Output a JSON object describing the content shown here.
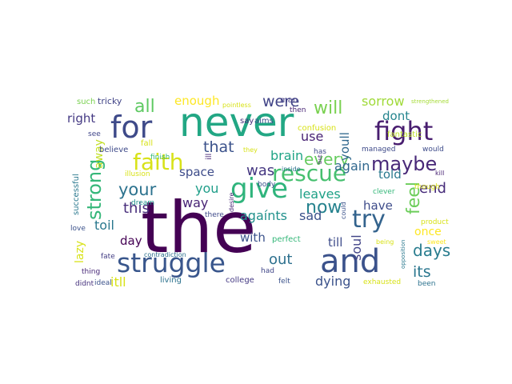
{
  "word_cloud": {
    "words": [
      {
        "text": "the",
        "color": "#440154"
      },
      {
        "text": "never",
        "color": "#22a784"
      },
      {
        "text": "and",
        "color": "#3b528b"
      },
      {
        "text": "struggle",
        "color": "#39568c"
      },
      {
        "text": "for",
        "color": "#3e4a89"
      },
      {
        "text": "fight",
        "color": "#481d6f"
      },
      {
        "text": "give",
        "color": "#2fb47c"
      },
      {
        "text": "try",
        "color": "#33638d"
      },
      {
        "text": "faith",
        "color": "#d8e219"
      },
      {
        "text": "rescue",
        "color": "#46c06f"
      },
      {
        "text": "strong",
        "color": "#35b779"
      },
      {
        "text": "maybe",
        "color": "#482878"
      },
      {
        "text": "now",
        "color": "#26828e"
      },
      {
        "text": "every",
        "color": "#65cb5e"
      },
      {
        "text": "feel",
        "color": "#6ccd5a"
      },
      {
        "text": "will",
        "color": "#7ad151"
      },
      {
        "text": "all",
        "color": "#5ec962"
      },
      {
        "text": "your",
        "color": "#2c728e"
      },
      {
        "text": "days",
        "color": "#287c8e"
      },
      {
        "text": "its",
        "color": "#2a768e"
      },
      {
        "text": "were",
        "color": "#414487"
      },
      {
        "text": "that",
        "color": "#3b528b"
      },
      {
        "text": "was",
        "color": "#453781"
      },
      {
        "text": "this",
        "color": "#472d7b"
      },
      {
        "text": "out",
        "color": "#2d708e"
      },
      {
        "text": "end",
        "color": "#472c7a"
      },
      {
        "text": "sorrow",
        "color": "#a0da39"
      },
      {
        "text": "enough",
        "color": "#fde725"
      },
      {
        "text": "right",
        "color": "#443983"
      },
      {
        "text": "youll",
        "color": "#31688e"
      },
      {
        "text": "dont",
        "color": "#25858e"
      },
      {
        "text": "use",
        "color": "#482374"
      },
      {
        "text": "brain",
        "color": "#20a486"
      },
      {
        "text": "again",
        "color": "#31688e"
      },
      {
        "text": "told",
        "color": "#2a788e"
      },
      {
        "text": "space",
        "color": "#3e4c8a"
      },
      {
        "text": "you",
        "color": "#1f9e89"
      },
      {
        "text": "way",
        "color": "#482475"
      },
      {
        "text": "leaves",
        "color": "#1fa187"
      },
      {
        "text": "agaínts",
        "color": "#21918c"
      },
      {
        "text": "have",
        "color": "#3e4c8a"
      },
      {
        "text": "sad",
        "color": "#3b528b"
      },
      {
        "text": "once",
        "color": "#fde725"
      },
      {
        "text": "toil",
        "color": "#2a788e"
      },
      {
        "text": "day",
        "color": "#440154"
      },
      {
        "text": "with",
        "color": "#3b528b"
      },
      {
        "text": "till",
        "color": "#3e4c8a"
      },
      {
        "text": "soul",
        "color": "#414487"
      },
      {
        "text": "dying",
        "color": "#3b528b"
      },
      {
        "text": "itll",
        "color": "#d8e219"
      },
      {
        "text": "away",
        "color": "#c2df23"
      },
      {
        "text": "lazy",
        "color": "#d8e219"
      },
      {
        "text": "such",
        "color": "#7ad151"
      },
      {
        "text": "tricky",
        "color": "#414487"
      },
      {
        "text": "man",
        "color": "#433e85"
      },
      {
        "text": "say",
        "color": "#472d7b"
      },
      {
        "text": "aims",
        "color": "#3b528b"
      },
      {
        "text": "pointless",
        "color": "#d8e219"
      },
      {
        "text": "then",
        "color": "#482475"
      },
      {
        "text": "strengthened",
        "color": "#a5db36"
      },
      {
        "text": "confusion",
        "color": "#d8e219"
      },
      {
        "text": "fantastic",
        "color": "#bddf26"
      },
      {
        "text": "see",
        "color": "#404688"
      },
      {
        "text": "fall",
        "color": "#d8e219"
      },
      {
        "text": "believe",
        "color": "#3e4a89"
      },
      {
        "text": "ill",
        "color": "#482878"
      },
      {
        "text": "they",
        "color": "#d8e219"
      },
      {
        "text": "has",
        "color": "#3e4a89"
      },
      {
        "text": "managed",
        "color": "#3e4a89"
      },
      {
        "text": "would",
        "color": "#3e4c8a"
      },
      {
        "text": "finish",
        "color": "#35b779"
      },
      {
        "text": "illusion",
        "color": "#d8e219"
      },
      {
        "text": "body",
        "color": "#3b528b"
      },
      {
        "text": "inside",
        "color": "#2c728e"
      },
      {
        "text": "but",
        "color": "#482173"
      },
      {
        "text": "clever",
        "color": "#35b779"
      },
      {
        "text": "though",
        "color": "#d8e219"
      },
      {
        "text": "kill",
        "color": "#482374"
      },
      {
        "text": "dream",
        "color": "#21918c"
      },
      {
        "text": "desire",
        "color": "#482878"
      },
      {
        "text": "there",
        "color": "#3e4a89"
      },
      {
        "text": "could",
        "color": "#3b528b"
      },
      {
        "text": "successful",
        "color": "#2a788e"
      },
      {
        "text": "love",
        "color": "#3b528b"
      },
      {
        "text": "product",
        "color": "#d8e219"
      },
      {
        "text": "sweet",
        "color": "#fde725"
      },
      {
        "text": "fate",
        "color": "#433e85"
      },
      {
        "text": "contradiction",
        "color": "#2d708e"
      },
      {
        "text": "perfect",
        "color": "#35b779"
      },
      {
        "text": "being",
        "color": "#d8e219"
      },
      {
        "text": "thing",
        "color": "#482878"
      },
      {
        "text": "ideal",
        "color": "#3b528b"
      },
      {
        "text": "had",
        "color": "#404688"
      },
      {
        "text": "opposition",
        "color": "#2a788e"
      },
      {
        "text": "didnt",
        "color": "#46327e"
      },
      {
        "text": "living",
        "color": "#2c728e"
      },
      {
        "text": "college",
        "color": "#443983"
      },
      {
        "text": "felt",
        "color": "#3b528b"
      },
      {
        "text": "exhausted",
        "color": "#d8e219"
      },
      {
        "text": "been",
        "color": "#2c728e"
      }
    ]
  }
}
